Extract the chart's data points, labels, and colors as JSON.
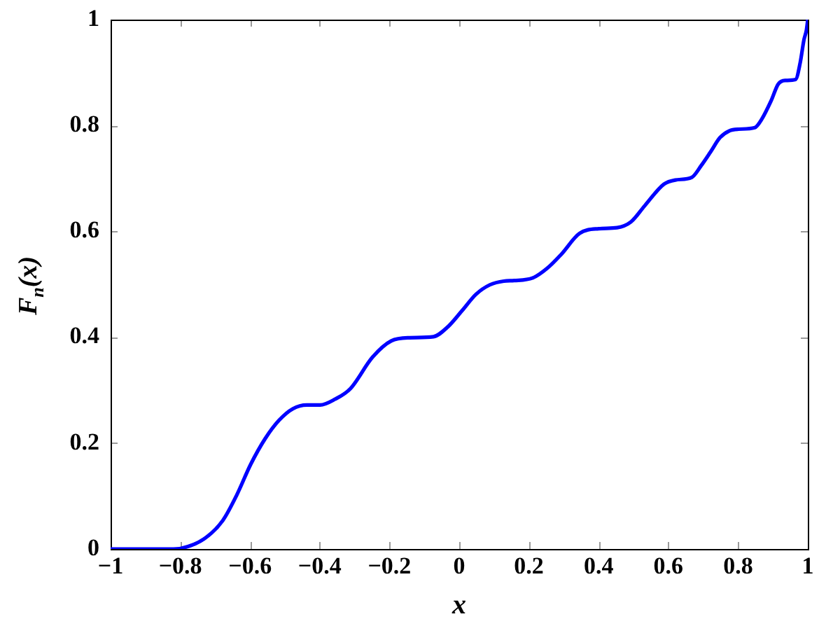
{
  "chart_data": {
    "type": "line",
    "xlabel": "x",
    "ylabel": "F$_{n}$(x)",
    "x": [
      -1,
      -0.9,
      -0.82,
      -0.799,
      -0.732,
      -0.678,
      -0.638,
      -0.598,
      -0.557,
      -0.517,
      -0.477,
      -0.437,
      -0.399,
      -0.356,
      -0.312,
      -0.249,
      -0.195,
      -0.142,
      -0.074,
      -0.032,
      0.008,
      0.048,
      0.088,
      0.128,
      0.158,
      0.211,
      0.252,
      0.292,
      0.345,
      0.4,
      0.453,
      0.493,
      0.533,
      0.587,
      0.62,
      0.667,
      0.694,
      0.721,
      0.748,
      0.775,
      0.801,
      0.848,
      0.868,
      0.895,
      0.915,
      0.935,
      0.965,
      0.978,
      0.989,
      0.996,
      1
    ],
    "series": [
      {
        "color": "#0000ff",
        "values": [
          0,
          0,
          0,
          0.001,
          0.019,
          0.054,
          0.102,
          0.16,
          0.208,
          0.243,
          0.265,
          0.272,
          0.272,
          0.283,
          0.303,
          0.362,
          0.393,
          0.399,
          0.401,
          0.42,
          0.45,
          0.481,
          0.499,
          0.506,
          0.507,
          0.512,
          0.53,
          0.556,
          0.596,
          0.605,
          0.607,
          0.618,
          0.649,
          0.689,
          0.697,
          0.702,
          0.724,
          0.75,
          0.777,
          0.79,
          0.793,
          0.796,
          0.812,
          0.847,
          0.878,
          0.885,
          0.887,
          0.918,
          0.962,
          0.98,
          1
        ]
      }
    ],
    "xlim": [
      -1,
      1
    ],
    "ylim": [
      0,
      1
    ],
    "xticks": [
      {
        "value": -1,
        "label": "−1"
      },
      {
        "value": -0.8,
        "label": "−0.8"
      },
      {
        "value": -0.6,
        "label": "−0.6"
      },
      {
        "value": -0.4,
        "label": "−0.4"
      },
      {
        "value": -0.2,
        "label": "−0.2"
      },
      0,
      0.2,
      0.4,
      0.6,
      0.8,
      1
    ],
    "yticks": [
      0,
      0.2,
      0.4,
      0.6,
      0.8,
      1
    ],
    "grid": false,
    "legend": false,
    "marker": "none",
    "line_style": "solid"
  }
}
